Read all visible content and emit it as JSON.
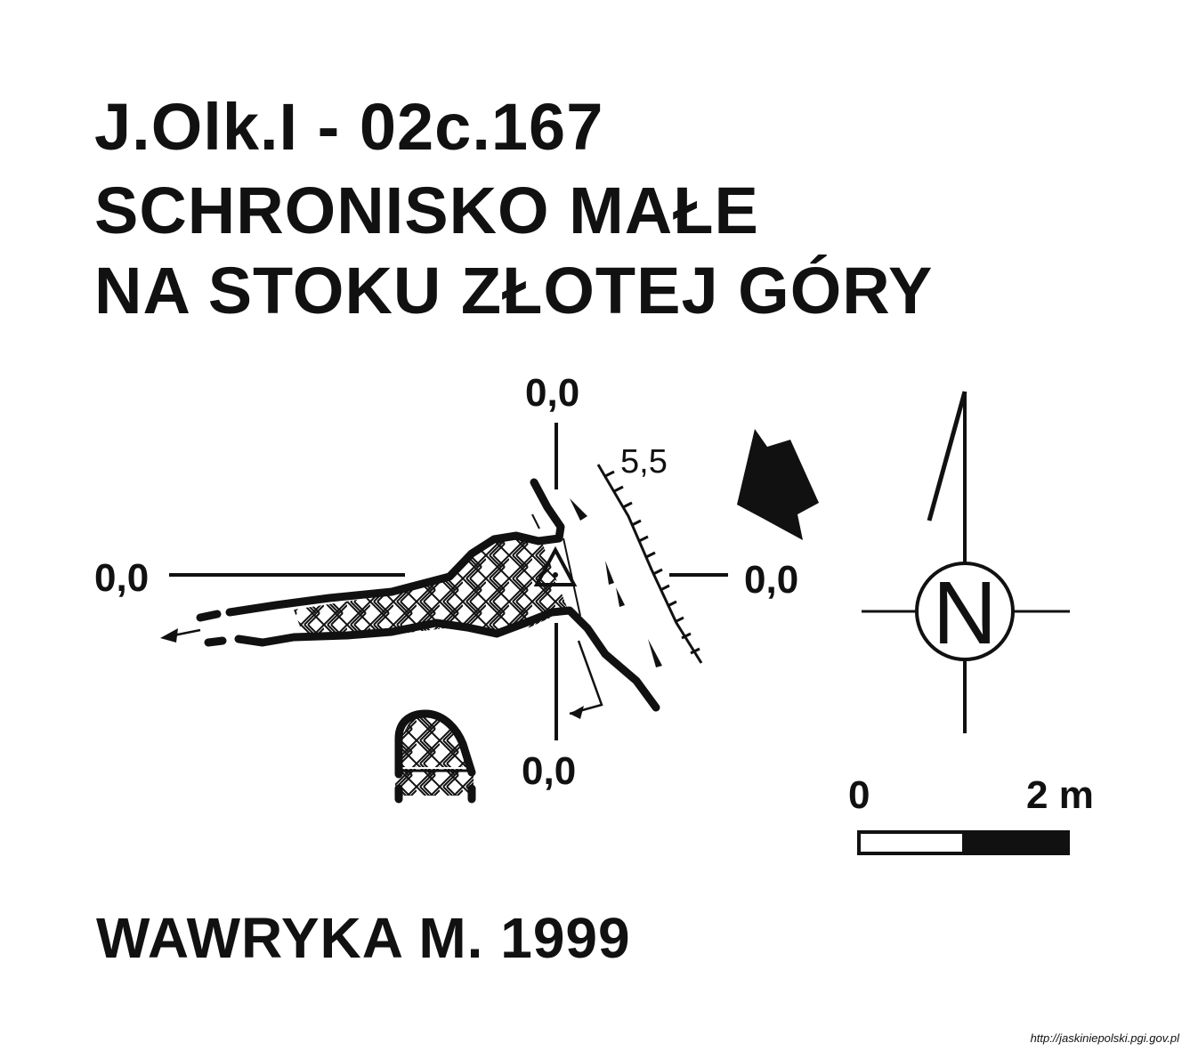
{
  "title": {
    "code": "J.Olk.I - 02c.167",
    "name_line1": "SCHRONISKO MAŁE",
    "name_line2": "NA STOKU ZŁOTEJ GÓRY"
  },
  "survey_labels": {
    "top": "0,0",
    "bottom": "0,0",
    "left": "0,0",
    "right": "0,0",
    "height_mark": "5,5"
  },
  "compass": {
    "letter": "N",
    "icon": "north-arrow-icon"
  },
  "scale_bar": {
    "start_label": "0",
    "end_label": "2 m",
    "colors": [
      "#ffffff",
      "#111111"
    ]
  },
  "author": "WAWRYKA M. 1999",
  "source_url": "http://jaskiniepolski.pgi.gov.pl"
}
